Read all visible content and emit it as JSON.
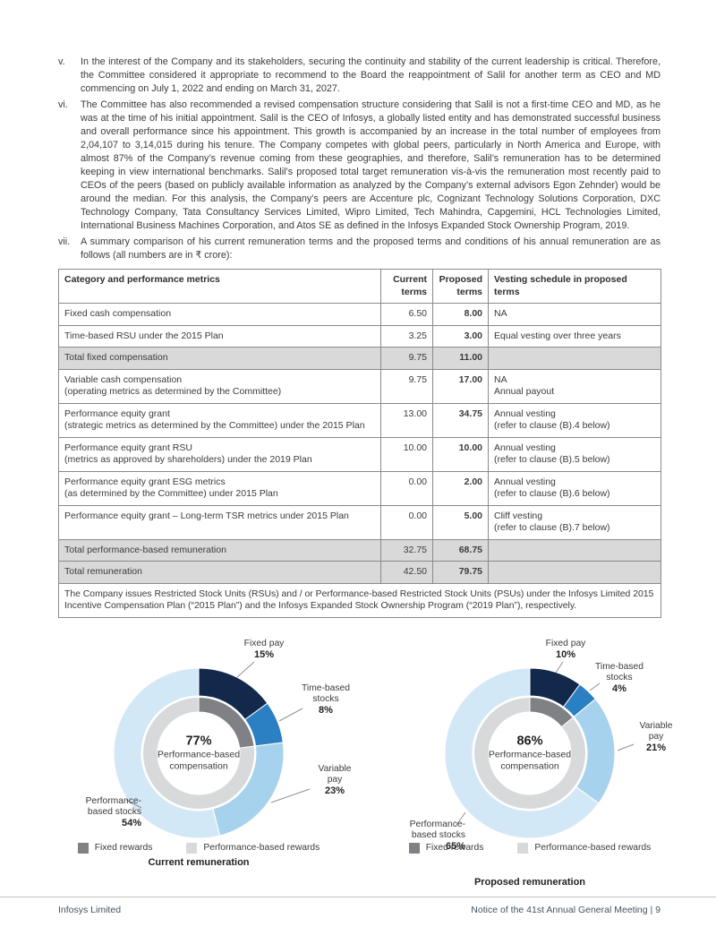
{
  "page": {
    "footer_left": "Infosys Limited",
    "footer_right": "Notice of the 41st Annual General Meeting | 9"
  },
  "paragraphs": [
    {
      "marker": "v.",
      "text": "In the interest of the Company and its stakeholders, securing the continuity and stability of the current leadership is critical. Therefore, the Committee considered it appropriate to recommend to the Board the reappointment of Salil for another term as CEO and MD commencing on July 1, 2022 and ending on March 31, 2027."
    },
    {
      "marker": "vi.",
      "text": "The Committee has also recommended a revised compensation structure considering that Salil is not a first-time CEO and MD, as he was at the time of his initial appointment. Salil is the CEO of Infosys, a globally listed entity and has demonstrated successful business and overall performance since his appointment. This growth is accompanied by an increase in the total number of employees from 2,04,107 to 3,14,015 during his tenure. The Company competes with global peers, particularly in North America and Europe, with almost 87% of the Company’s revenue coming from these geographies, and therefore, Salil’s remuneration has to be determined keeping in view international benchmarks. Salil’s proposed total target remuneration vis-à-vis the remuneration most recently paid to CEOs of the peers (based on publicly available information as analyzed by the Company’s external advisors Egon Zehnder) would be around the median. For this analysis, the Company’s peers are Accenture plc, Cognizant Technology Solutions Corporation, DXC Technology Company, Tata Consultancy Services Limited, Wipro Limited, Tech Mahindra, Capgemini, HCL Technologies Limited, International Business Machines Corporation, and Atos SE as defined in the Infosys Expanded Stock Ownership Program, 2019."
    },
    {
      "marker": "vii.",
      "text": "A summary comparison of his current remuneration terms and the proposed terms and conditions of his annual remuneration are as follows (all numbers are in ₹ crore):"
    }
  ],
  "table": {
    "headers": [
      "Category and performance metrics",
      "Current terms",
      "Proposed terms",
      "Vesting schedule in proposed terms"
    ],
    "rows": [
      {
        "category": [
          "Fixed cash compensation"
        ],
        "current": "6.50",
        "proposed": "8.00",
        "vesting": [
          "NA"
        ],
        "shaded": false
      },
      {
        "category": [
          "Time-based RSU under the 2015 Plan"
        ],
        "current": "3.25",
        "proposed": "3.00",
        "vesting": [
          "Equal vesting over three years"
        ],
        "shaded": false
      },
      {
        "category": [
          "Total fixed compensation"
        ],
        "current": "9.75",
        "proposed": "11.00",
        "vesting": [],
        "shaded": true
      },
      {
        "category": [
          "Variable cash compensation",
          "(operating metrics as determined by the Committee)"
        ],
        "current": "9.75",
        "proposed": "17.00",
        "vesting": [
          "NA",
          "Annual payout"
        ],
        "shaded": false
      },
      {
        "category": [
          "Performance equity grant",
          "(strategic metrics as determined by the Committee) under the 2015 Plan"
        ],
        "current": "13.00",
        "proposed": "34.75",
        "vesting": [
          "Annual vesting",
          "(refer to clause (B).4 below)"
        ],
        "shaded": false
      },
      {
        "category": [
          "Performance equity grant RSU",
          "(metrics as approved by shareholders) under the 2019 Plan"
        ],
        "current": "10.00",
        "proposed": "10.00",
        "vesting": [
          "Annual vesting",
          "(refer to clause (B).5 below)"
        ],
        "shaded": false
      },
      {
        "category": [
          "Performance equity grant ESG metrics",
          "(as determined by the Committee) under 2015 Plan"
        ],
        "current": "0.00",
        "proposed": "2.00",
        "vesting": [
          "Annual vesting",
          "(refer to clause (B).6 below)"
        ],
        "shaded": false
      },
      {
        "category": [
          "Performance equity grant – Long-term TSR metrics under 2015 Plan"
        ],
        "current": "0.00",
        "proposed": "5.00",
        "vesting": [
          "Cliff vesting",
          "(refer to clause (B).7 below)"
        ],
        "shaded": false
      },
      {
        "category": [
          "Total performance-based remuneration"
        ],
        "current": "32.75",
        "proposed": "68.75",
        "vesting": [],
        "shaded": true
      },
      {
        "category": [
          "Total remuneration"
        ],
        "current": "42.50",
        "proposed": "79.75",
        "vesting": [],
        "shaded": true
      }
    ],
    "footnote": "The Company issues Restricted Stock Units (RSUs) and / or Performance-based Restricted Stock Units (PSUs) under the Infosys Limited 2015 Incentive Compensation Plan (“2015 Plan”) and the Infosys Expanded Stock Ownership Program (“2019 Plan”), respectively."
  },
  "chart_data": [
    {
      "type": "donut",
      "title": "Current remuneration",
      "center": {
        "value": "77%",
        "label": "Performance-based compensation"
      },
      "segments": [
        {
          "label": "Fixed pay",
          "pct": 15,
          "color": "#12294b"
        },
        {
          "label": "Time-based stocks",
          "pct": 8,
          "color": "#2b7fc3"
        },
        {
          "label": "Variable pay",
          "pct": 23,
          "color": "#a7d2ee"
        },
        {
          "label": "Performance-based stocks",
          "pct": 54,
          "color": "#d3e8f6"
        }
      ],
      "inner_ring": [
        {
          "label": "Fixed rewards",
          "pct": 23,
          "color": "#7f8184"
        },
        {
          "label": "Performance-based rewards",
          "pct": 77,
          "color": "#d8d9da"
        }
      ],
      "legend": [
        {
          "label": "Fixed rewards",
          "color": "#7f8184"
        },
        {
          "label": "Performance-based rewards",
          "color": "#d8d9da"
        }
      ]
    },
    {
      "type": "donut",
      "title": "Proposed remuneration",
      "center": {
        "value": "86%",
        "label": "Performance-based compensation"
      },
      "segments": [
        {
          "label": "Fixed pay",
          "pct": 10,
          "color": "#12294b"
        },
        {
          "label": "Time-based stocks",
          "pct": 4,
          "color": "#2b7fc3"
        },
        {
          "label": "Variable pay",
          "pct": 21,
          "color": "#a7d2ee"
        },
        {
          "label": "Performance-based stocks",
          "pct": 65,
          "color": "#d3e8f6"
        }
      ],
      "inner_ring": [
        {
          "label": "Fixed rewards",
          "pct": 14,
          "color": "#7f8184"
        },
        {
          "label": "Performance-based rewards",
          "pct": 86,
          "color": "#d8d9da"
        }
      ],
      "legend": [
        {
          "label": "Fixed rewards",
          "color": "#7f8184"
        },
        {
          "label": "Performance-based rewards",
          "color": "#d8d9da"
        }
      ]
    }
  ]
}
